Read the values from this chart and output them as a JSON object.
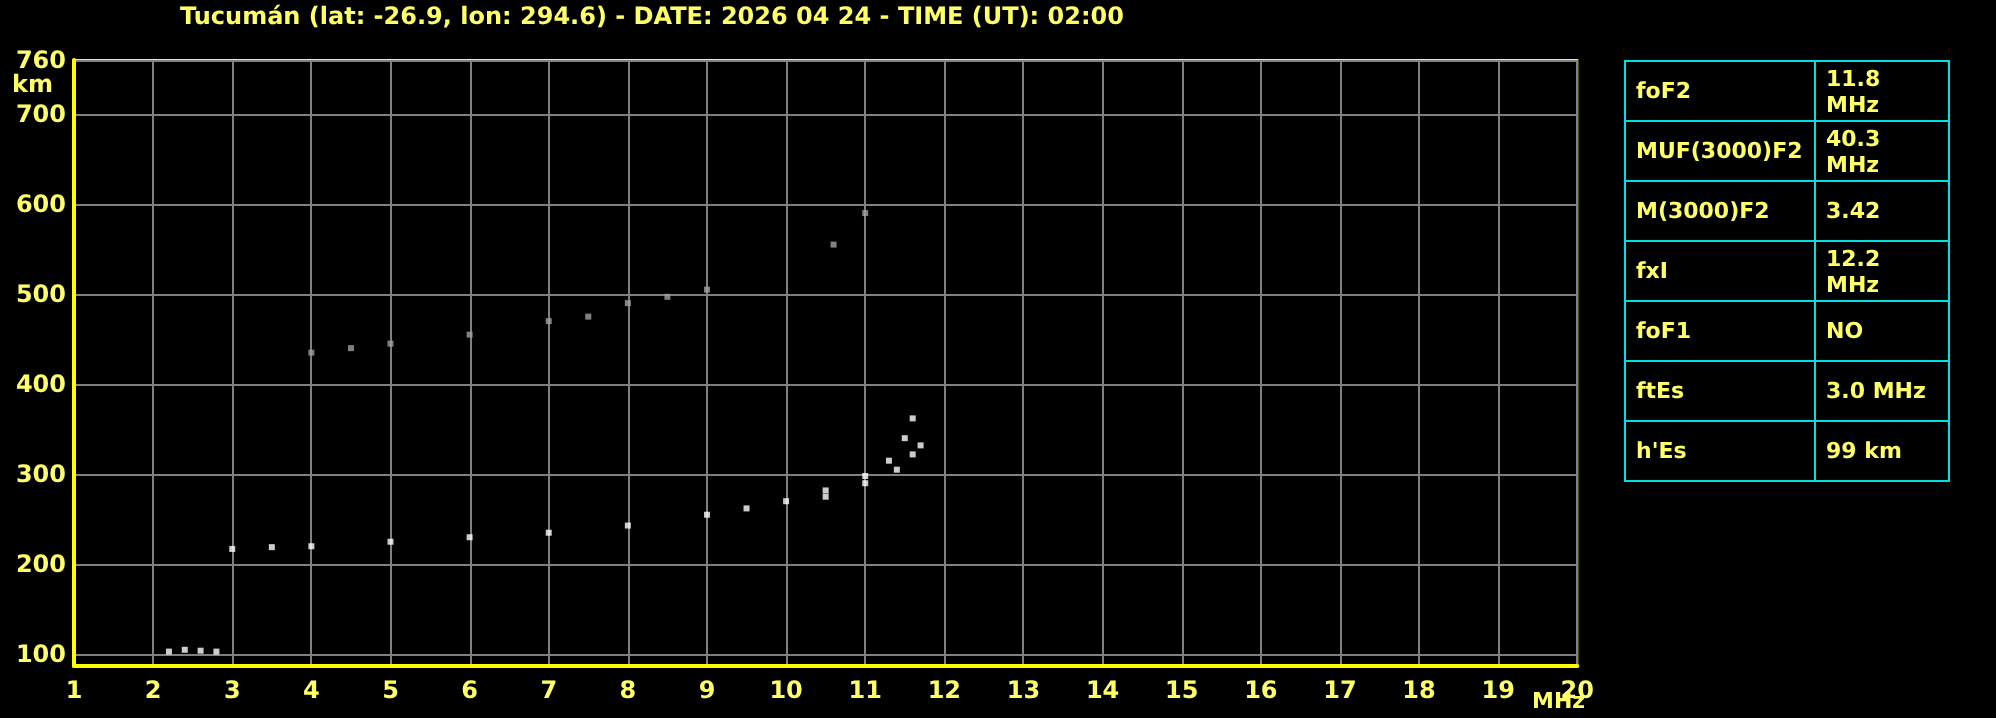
{
  "chart_data": [
    {
      "type": "scatter",
      "title": "Tucumán (lat: -26.9, lon: 294.6) - DATE: 2026 04 24 - TIME (UT): 02:00",
      "xlabel": "MHz",
      "ylabel": "km",
      "x": [
        3.0,
        3.5,
        4,
        5,
        6,
        7,
        8,
        9,
        9.5,
        10,
        10.5,
        11,
        11.3,
        11.5,
        11.6
      ],
      "series": [
        {
          "color": "#ffffff",
          "values": [
            217,
            219,
            220,
            225,
            230,
            235,
            243,
            255,
            262,
            270,
            282,
            298,
            315,
            340,
            362
          ]
        },
        {
          "color": "#ffffff",
          "x": [
            10.5,
            11,
            11.4,
            11.6,
            11.7
          ],
          "values": [
            275,
            290,
            305,
            322,
            332
          ]
        },
        {
          "color": "#a0a0a0",
          "x": [
            4,
            4.5,
            5,
            6,
            7,
            7.5,
            8,
            8.5,
            9,
            10.6,
            11
          ],
          "values": [
            435,
            440,
            445,
            455,
            470,
            475,
            490,
            497,
            505,
            555,
            590
          ]
        },
        {
          "color": "#ffffff",
          "x": [
            2.2,
            2.4,
            2.6,
            2.8
          ],
          "values": [
            103,
            105,
            104,
            103
          ]
        }
      ],
      "marker": "square",
      "grid": true,
      "xlim": [
        1,
        20
      ],
      "ylim": [
        87,
        760
      ],
      "xticks": [
        1,
        2,
        3,
        4,
        5,
        6,
        7,
        8,
        9,
        10,
        11,
        12,
        13,
        14,
        15,
        16,
        17,
        18,
        19,
        20
      ],
      "yticks": [
        100,
        200,
        300,
        400,
        500,
        600,
        700,
        760
      ]
    },
    {
      "type": "other",
      "annotations": [
        "foF2",
        "11.8 MHz",
        "MUF(3000)F2",
        "40.3 MHz",
        "M(3000)F2",
        "3.42",
        "fxI",
        "12.2 MHz",
        "foF1",
        "NO",
        "ftEs",
        "3.0 MHz",
        "h'Es",
        "99 km"
      ]
    }
  ]
}
